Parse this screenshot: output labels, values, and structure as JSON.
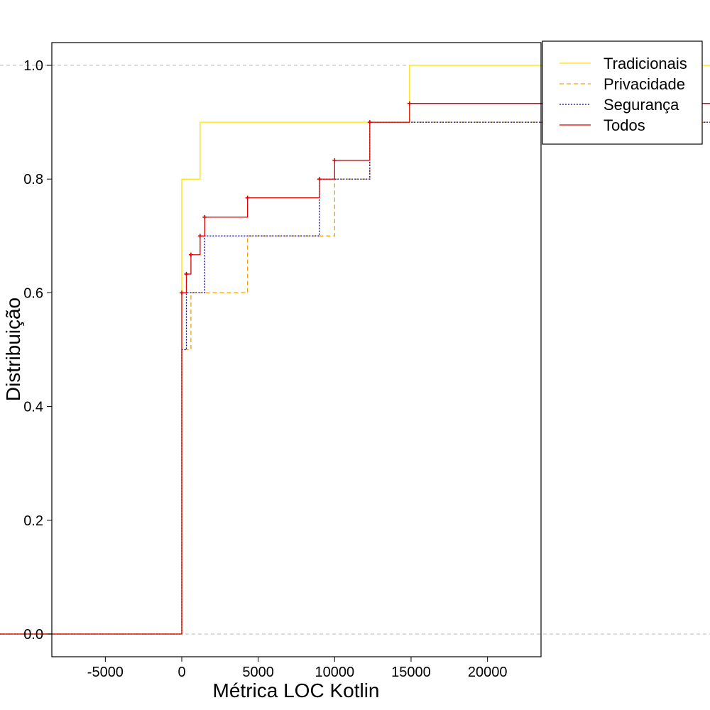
{
  "chart_data": {
    "type": "line",
    "subtype": "ecdf-step",
    "xlabel": "Métrica LOC Kotlin",
    "ylabel": "Distribuição",
    "xlim": [
      -8500,
      23500
    ],
    "ylim": [
      -0.04,
      1.04
    ],
    "x_ticks": [
      -5000,
      0,
      5000,
      10000,
      15000,
      20000
    ],
    "x_tick_labels": [
      "-5000",
      "0",
      "5000",
      "10000",
      "15000",
      "20000"
    ],
    "y_ticks": [
      0.0,
      0.2,
      0.4,
      0.6,
      0.8,
      1.0
    ],
    "y_tick_labels": [
      "0.0",
      "0.2",
      "0.4",
      "0.6",
      "0.8",
      "1.0"
    ],
    "grid": false,
    "reference_lines_y": [
      0.0,
      1.0
    ],
    "legend_position": "top-right",
    "series": [
      {
        "name": "Tradicionais",
        "color": "#FFE000",
        "dash": "solid",
        "x_start": -8500,
        "x_end": 23500,
        "steps": [
          [
            0,
            0.8
          ],
          [
            1200,
            0.9
          ],
          [
            14900,
            1.0
          ]
        ],
        "markers": false
      },
      {
        "name": "Privacidade",
        "color": "#E8A317",
        "dash": "dashed",
        "x_start": -8500,
        "x_end": 23500,
        "steps": [
          [
            0,
            0.5
          ],
          [
            600,
            0.6
          ],
          [
            4300,
            0.7
          ],
          [
            10000,
            0.8
          ],
          [
            12300,
            0.9
          ]
        ],
        "markers": false
      },
      {
        "name": "Segurança",
        "color": "#00008B",
        "dash": "dotted",
        "x_start": -8500,
        "x_end": 23500,
        "steps": [
          [
            0,
            0.5
          ],
          [
            300,
            0.6
          ],
          [
            1500,
            0.7
          ],
          [
            9000,
            0.8
          ],
          [
            12300,
            0.9
          ]
        ],
        "markers": false
      },
      {
        "name": "Todos",
        "color": "#E00000",
        "dash": "solid",
        "x_start": -8500,
        "x_end": 23500,
        "steps": [
          [
            0,
            0.6
          ],
          [
            300,
            0.633
          ],
          [
            600,
            0.667
          ],
          [
            1200,
            0.7
          ],
          [
            1500,
            0.733
          ],
          [
            4300,
            0.767
          ],
          [
            9000,
            0.8
          ],
          [
            10000,
            0.833
          ],
          [
            12300,
            0.9
          ],
          [
            14900,
            0.933
          ]
        ],
        "markers": true
      }
    ]
  }
}
